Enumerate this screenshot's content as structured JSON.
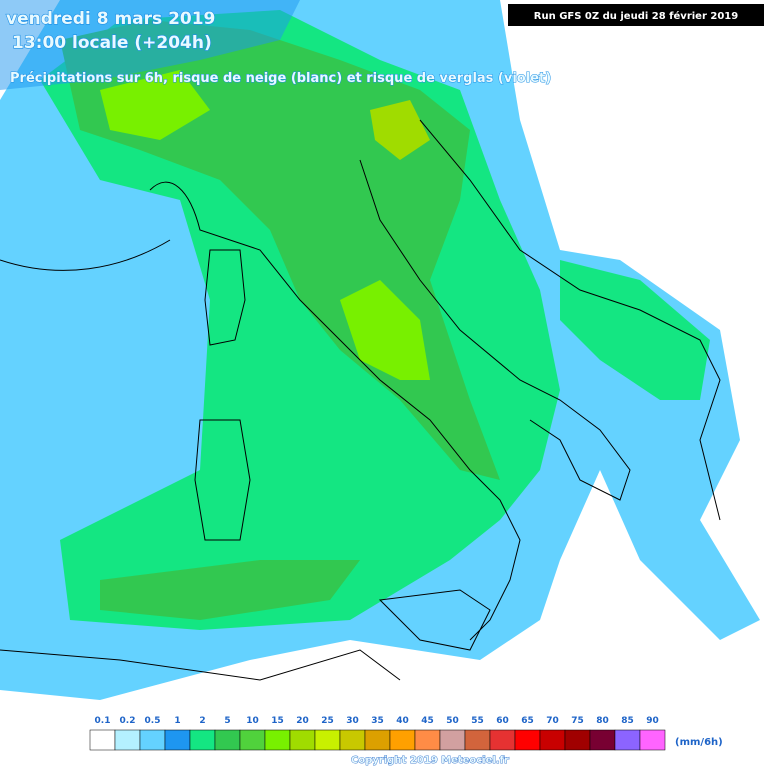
{
  "header": {
    "date": "vendredi 8 mars 2019",
    "time": "13:00 locale (+204h)",
    "subtitle": "Précipitations sur 6h, risque de neige (blanc) et risque de verglas (violet)",
    "run": "Run GFS 0Z du jeudi 28 février 2019"
  },
  "legend": {
    "labels": [
      "0.1",
      "0.2",
      "0.5",
      "1",
      "2",
      "5",
      "10",
      "15",
      "20",
      "25",
      "30",
      "35",
      "40",
      "45",
      "50",
      "55",
      "60",
      "65",
      "70",
      "75",
      "80",
      "85",
      "90"
    ],
    "colors": [
      "#ffffff",
      "#b4f0ff",
      "#64d2ff",
      "#1e96f0",
      "#14e682",
      "#32c850",
      "#50d23c",
      "#78f000",
      "#a0dc00",
      "#c8f000",
      "#c8c800",
      "#dca000",
      "#ffa000",
      "#ff8c46",
      "#d2a0a0",
      "#d2643c",
      "#e63232",
      "#ff0000",
      "#c80000",
      "#a00000",
      "#780032",
      "#8c64ff",
      "#ff64ff"
    ],
    "unit": "(mm/6h)"
  },
  "footer": {
    "copyright": "Copyright 2019 Meteociel.fr"
  }
}
